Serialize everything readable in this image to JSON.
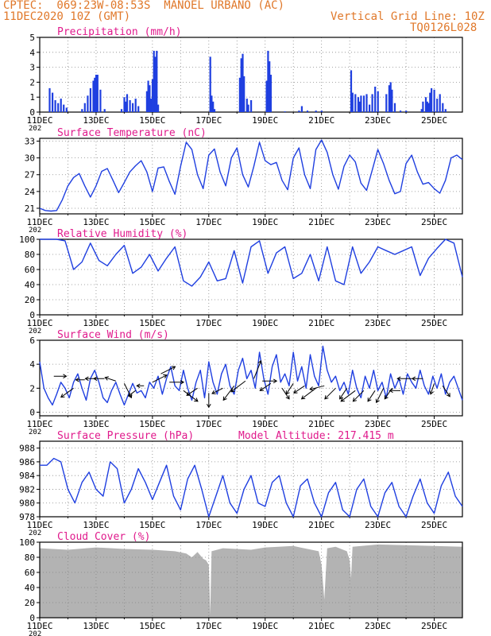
{
  "header": {
    "line1_left": "CPTEC:  069:23W-08:53S  MANOEL URBANO (AC)",
    "line2_left": "11DEC2020 10Z (GMT)",
    "line2_right": "Vertical Grid Line: 10Z",
    "line3_right": "TQ0126L028",
    "color": "#e0782a"
  },
  "colors": {
    "series": "#1f3fe0",
    "title": "#e01a8c",
    "cloud": "#b3b3b3",
    "wind_arrow": "#000000"
  },
  "x_axis": {
    "start": "11DEC 10Z",
    "span_days": 15,
    "tick_labels": [
      "11DEC",
      "13DEC",
      "15DEC",
      "17DEC",
      "19DEC",
      "21DEC",
      "23DEC",
      "25DEC"
    ],
    "tick_days": [
      0,
      2,
      4,
      6,
      8,
      10,
      12,
      14
    ],
    "grid_days": [
      1,
      3,
      5,
      7,
      9,
      11,
      13
    ],
    "cut_label": "202"
  },
  "chart_data": [
    {
      "type": "bar",
      "title": "Precipitation (mm/h)",
      "ylim": [
        0,
        5
      ],
      "yticks": [
        0,
        1,
        2,
        3,
        4,
        5
      ],
      "bars": [
        [
          0.35,
          1.6
        ],
        [
          0.45,
          1.3
        ],
        [
          0.55,
          0.8
        ],
        [
          0.65,
          0.6
        ],
        [
          0.75,
          0.9
        ],
        [
          0.85,
          0.5
        ],
        [
          0.95,
          0.3
        ],
        [
          1.5,
          0.2
        ],
        [
          1.6,
          0.6
        ],
        [
          1.7,
          1.1
        ],
        [
          1.8,
          1.6
        ],
        [
          1.9,
          2.1
        ],
        [
          1.95,
          2.3
        ],
        [
          2.0,
          2.5
        ],
        [
          2.05,
          2.5
        ],
        [
          2.15,
          1.5
        ],
        [
          2.3,
          0.2
        ],
        [
          2.9,
          0.2
        ],
        [
          3.0,
          1.0
        ],
        [
          3.05,
          0.7
        ],
        [
          3.1,
          1.2
        ],
        [
          3.2,
          0.8
        ],
        [
          3.3,
          0.6
        ],
        [
          3.4,
          0.9
        ],
        [
          3.5,
          0.4
        ],
        [
          3.8,
          1.4
        ],
        [
          3.85,
          2.1
        ],
        [
          3.9,
          1.8
        ],
        [
          3.95,
          0.9
        ],
        [
          4.0,
          2.2
        ],
        [
          4.05,
          4.1
        ],
        [
          4.1,
          3.7
        ],
        [
          4.15,
          4.1
        ],
        [
          4.2,
          0.5
        ],
        [
          6.05,
          3.7
        ],
        [
          6.1,
          1.1
        ],
        [
          6.15,
          0.7
        ],
        [
          6.2,
          0.2
        ],
        [
          7.1,
          2.3
        ],
        [
          7.15,
          3.6
        ],
        [
          7.2,
          3.9
        ],
        [
          7.25,
          2.4
        ],
        [
          7.35,
          0.9
        ],
        [
          7.4,
          0.5
        ],
        [
          7.5,
          0.8
        ],
        [
          8.05,
          2.1
        ],
        [
          8.1,
          4.1
        ],
        [
          8.15,
          3.4
        ],
        [
          8.2,
          2.5
        ],
        [
          8.7,
          0.05
        ],
        [
          9.2,
          0.1
        ],
        [
          9.3,
          0.4
        ],
        [
          9.5,
          0.1
        ],
        [
          9.8,
          0.1
        ],
        [
          10.0,
          0.1
        ],
        [
          11.05,
          2.8
        ],
        [
          11.1,
          1.3
        ],
        [
          11.2,
          1.2
        ],
        [
          11.3,
          1.0
        ],
        [
          11.35,
          0.7
        ],
        [
          11.4,
          1.1
        ],
        [
          11.5,
          1.1
        ],
        [
          11.6,
          1.2
        ],
        [
          11.7,
          0.5
        ],
        [
          11.8,
          1.2
        ],
        [
          11.9,
          1.7
        ],
        [
          12.0,
          1.4
        ],
        [
          12.3,
          1.2
        ],
        [
          12.4,
          1.8
        ],
        [
          12.45,
          2.0
        ],
        [
          12.5,
          1.5
        ],
        [
          12.6,
          0.6
        ],
        [
          12.8,
          0.1
        ],
        [
          13.0,
          0.1
        ],
        [
          13.55,
          0.2
        ],
        [
          13.6,
          0.7
        ],
        [
          13.7,
          1.0
        ],
        [
          13.75,
          0.7
        ],
        [
          13.8,
          0.6
        ],
        [
          13.85,
          1.3
        ],
        [
          13.9,
          1.6
        ],
        [
          14.0,
          1.5
        ],
        [
          14.1,
          0.9
        ],
        [
          14.2,
          1.2
        ],
        [
          14.3,
          0.6
        ],
        [
          14.4,
          0.2
        ]
      ]
    },
    {
      "type": "line",
      "title": "Surface Temperature (nC)",
      "ylim": [
        20,
        33.5
      ],
      "yticks": [
        21,
        24,
        27,
        30,
        33
      ],
      "x": [
        0,
        0.2,
        0.4,
        0.6,
        0.8,
        1.0,
        1.2,
        1.4,
        1.6,
        1.8,
        2.0,
        2.2,
        2.4,
        2.6,
        2.8,
        3.0,
        3.2,
        3.4,
        3.6,
        3.8,
        4.0,
        4.2,
        4.4,
        4.6,
        4.8,
        5.0,
        5.2,
        5.4,
        5.6,
        5.8,
        6.0,
        6.2,
        6.4,
        6.6,
        6.8,
        7.0,
        7.2,
        7.4,
        7.6,
        7.8,
        8.0,
        8.2,
        8.4,
        8.6,
        8.8,
        9.0,
        9.2,
        9.4,
        9.6,
        9.8,
        10.0,
        10.2,
        10.4,
        10.6,
        10.8,
        11.0,
        11.2,
        11.4,
        11.6,
        11.8,
        12.0,
        12.2,
        12.4,
        12.6,
        12.8,
        13.0,
        13.2,
        13.4,
        13.6,
        13.8,
        14.0,
        14.2,
        14.4,
        14.6,
        14.8,
        15.0
      ],
      "y": [
        21.0,
        20.6,
        20.5,
        20.6,
        22.5,
        25.0,
        26.5,
        27.2,
        25.0,
        23.0,
        25.0,
        27.6,
        28.1,
        26.0,
        23.8,
        25.6,
        27.5,
        28.6,
        29.5,
        27.5,
        24.0,
        28.2,
        28.4,
        25.8,
        23.5,
        28.5,
        32.8,
        31.5,
        27.0,
        24.5,
        30.5,
        31.6,
        27.5,
        25.0,
        30.0,
        31.8,
        27.0,
        24.8,
        28.5,
        32.8,
        29.5,
        28.8,
        29.2,
        26.0,
        24.3,
        30.0,
        31.8,
        27.0,
        24.5,
        31.5,
        33.2,
        31.0,
        27.0,
        24.4,
        28.5,
        30.5,
        29.3,
        25.5,
        24.2,
        27.8,
        31.5,
        29.0,
        26.0,
        23.6,
        24.0,
        29.0,
        30.5,
        27.5,
        25.3,
        25.6,
        24.5,
        23.7,
        26.0,
        30.0,
        30.5,
        29.7
      ]
    },
    {
      "type": "line",
      "title": "Relative Humidity (%)",
      "ylim": [
        0,
        100
      ],
      "yticks": [
        0,
        20,
        40,
        60,
        80,
        100
      ],
      "x": [
        0,
        0.3,
        0.6,
        0.9,
        1.2,
        1.5,
        1.8,
        2.1,
        2.4,
        2.7,
        3.0,
        3.3,
        3.6,
        3.9,
        4.2,
        4.5,
        4.8,
        5.1,
        5.4,
        5.7,
        6.0,
        6.3,
        6.6,
        6.9,
        7.2,
        7.5,
        7.8,
        8.1,
        8.4,
        8.7,
        9.0,
        9.3,
        9.6,
        9.9,
        10.2,
        10.5,
        10.8,
        11.1,
        11.4,
        11.7,
        12.0,
        12.3,
        12.6,
        12.9,
        13.2,
        13.5,
        13.8,
        14.1,
        14.4,
        14.7,
        15.0
      ],
      "y": [
        100,
        100,
        100,
        98,
        60,
        70,
        95,
        72,
        65,
        80,
        92,
        55,
        63,
        80,
        58,
        75,
        90,
        45,
        38,
        50,
        70,
        45,
        48,
        85,
        42,
        90,
        98,
        55,
        82,
        90,
        48,
        55,
        80,
        45,
        90,
        45,
        40,
        90,
        55,
        70,
        90,
        85,
        80,
        85,
        90,
        52,
        75,
        88,
        100,
        95,
        50
      ]
    },
    {
      "type": "line",
      "title": "Surface Wind (m/s)",
      "ylim": [
        -0.3,
        6
      ],
      "yticks": [
        0,
        2,
        4,
        6
      ],
      "x": [
        0,
        0.15,
        0.3,
        0.45,
        0.6,
        0.75,
        0.9,
        1.05,
        1.2,
        1.35,
        1.5,
        1.65,
        1.8,
        1.95,
        2.1,
        2.25,
        2.4,
        2.55,
        2.7,
        2.85,
        3.0,
        3.15,
        3.3,
        3.45,
        3.6,
        3.75,
        3.9,
        4.05,
        4.2,
        4.35,
        4.5,
        4.65,
        4.8,
        4.95,
        5.1,
        5.25,
        5.4,
        5.55,
        5.7,
        5.85,
        6.0,
        6.15,
        6.3,
        6.45,
        6.6,
        6.75,
        6.9,
        7.05,
        7.2,
        7.35,
        7.5,
        7.65,
        7.8,
        7.95,
        8.1,
        8.25,
        8.4,
        8.55,
        8.7,
        8.85,
        9.0,
        9.15,
        9.3,
        9.45,
        9.6,
        9.75,
        9.9,
        10.05,
        10.2,
        10.35,
        10.5,
        10.65,
        10.8,
        10.95,
        11.1,
        11.25,
        11.4,
        11.55,
        11.7,
        11.85,
        12.0,
        12.15,
        12.3,
        12.45,
        12.6,
        12.75,
        12.9,
        13.05,
        13.2,
        13.35,
        13.5,
        13.65,
        13.8,
        13.95,
        14.1,
        14.25,
        14.4,
        14.55,
        14.7,
        14.85,
        15.0
      ],
      "y": [
        4.2,
        2.0,
        1.2,
        0.6,
        1.5,
        2.5,
        2.0,
        1.2,
        2.5,
        3.2,
        2.0,
        1.0,
        2.8,
        3.5,
        2.5,
        1.2,
        0.8,
        1.8,
        2.5,
        1.5,
        0.6,
        1.5,
        2.4,
        1.6,
        1.8,
        1.2,
        2.5,
        2.0,
        3.0,
        1.5,
        2.8,
        3.8,
        2.2,
        1.8,
        3.5,
        2.0,
        1.0,
        2.5,
        3.5,
        1.2,
        4.2,
        2.5,
        1.5,
        3.2,
        4.0,
        2.2,
        1.5,
        3.5,
        4.5,
        2.8,
        3.5,
        2.0,
        5.0,
        2.8,
        1.5,
        3.8,
        4.8,
        2.5,
        3.2,
        2.2,
        5.0,
        2.6,
        3.8,
        2.0,
        4.8,
        3.0,
        2.2,
        5.5,
        3.5,
        2.5,
        3.0,
        1.8,
        2.5,
        1.5,
        3.5,
        2.0,
        1.2,
        3.0,
        2.0,
        3.5,
        1.8,
        2.5,
        1.2,
        3.2,
        2.0,
        2.8,
        1.5,
        3.2,
        2.5,
        2.0,
        3.5,
        2.2,
        1.5,
        3.0,
        2.0,
        3.2,
        1.5,
        2.5,
        3.0,
        2.0,
        1.0
      ],
      "arrows": [
        [
          0.5,
          3.0,
          3.5,
          0
        ],
        [
          1.2,
          2.0,
          -3.5,
          -2.5
        ],
        [
          1.6,
          2.7,
          -2.5,
          0
        ],
        [
          2.0,
          2.8,
          -3,
          0
        ],
        [
          2.3,
          2.8,
          -3,
          0
        ],
        [
          2.7,
          2.6,
          -3,
          1
        ],
        [
          3.0,
          2.4,
          2,
          -4
        ],
        [
          3.4,
          1.8,
          -2,
          -1.5
        ],
        [
          3.7,
          2.2,
          -2,
          0
        ],
        [
          4.0,
          2.5,
          4,
          2
        ],
        [
          4.3,
          3.2,
          4,
          2
        ],
        [
          4.6,
          2.5,
          4,
          0
        ],
        [
          5.1,
          1.8,
          4,
          -3
        ],
        [
          5.6,
          2.0,
          -3,
          -2
        ],
        [
          6.0,
          1.6,
          0,
          -4
        ],
        [
          6.5,
          2.0,
          -3,
          -1.5
        ],
        [
          6.9,
          2.2,
          -3,
          -4
        ],
        [
          7.3,
          2.6,
          -4,
          -3
        ],
        [
          7.6,
          2.8,
          2,
          5
        ],
        [
          7.9,
          2.6,
          4,
          0
        ],
        [
          8.2,
          2.4,
          -3,
          -2
        ],
        [
          8.6,
          2.0,
          2,
          -3
        ],
        [
          9.0,
          2.4,
          -2,
          -3
        ],
        [
          9.4,
          2.2,
          -3,
          -2
        ],
        [
          9.8,
          2.0,
          -4,
          -3
        ],
        [
          10.1,
          2.2,
          -4,
          -1
        ],
        [
          10.5,
          2.0,
          -3,
          -3
        ],
        [
          10.9,
          2.0,
          -2,
          -3
        ],
        [
          11.2,
          1.8,
          -4,
          -3
        ],
        [
          11.5,
          1.8,
          -3,
          -3
        ],
        [
          11.9,
          1.8,
          -2,
          -3
        ],
        [
          12.2,
          2.0,
          -2,
          -4
        ],
        [
          12.5,
          2.0,
          -2,
          -3
        ],
        [
          12.8,
          1.8,
          -3,
          0
        ],
        [
          13.2,
          2.8,
          -4,
          0
        ],
        [
          13.6,
          2.8,
          -3,
          0
        ],
        [
          14.0,
          2.4,
          -1,
          -3
        ],
        [
          14.3,
          2.2,
          2,
          -3
        ]
      ]
    },
    {
      "type": "line",
      "title": "Surface Pressure (hPa)",
      "annotation": "Model Altitude: 217.415 m",
      "ylim": [
        978,
        989
      ],
      "yticks": [
        978,
        980,
        982,
        984,
        986,
        988
      ],
      "x": [
        0,
        0.25,
        0.5,
        0.75,
        1.0,
        1.25,
        1.5,
        1.75,
        2.0,
        2.25,
        2.5,
        2.75,
        3.0,
        3.25,
        3.5,
        3.75,
        4.0,
        4.25,
        4.5,
        4.75,
        5.0,
        5.25,
        5.5,
        5.75,
        6.0,
        6.25,
        6.5,
        6.75,
        7.0,
        7.25,
        7.5,
        7.75,
        8.0,
        8.25,
        8.5,
        8.75,
        9.0,
        9.25,
        9.5,
        9.75,
        10.0,
        10.25,
        10.5,
        10.75,
        11.0,
        11.25,
        11.5,
        11.75,
        12.0,
        12.25,
        12.5,
        12.75,
        13.0,
        13.25,
        13.5,
        13.75,
        14.0,
        14.25,
        14.5,
        14.75,
        15.0
      ],
      "y": [
        985.5,
        985.5,
        986.5,
        986.0,
        982.0,
        980.0,
        983.0,
        984.5,
        982.0,
        981.0,
        986.0,
        985.0,
        980.0,
        982.0,
        985.0,
        983.0,
        980.5,
        983.0,
        985.5,
        981.0,
        979.0,
        983.5,
        985.5,
        982.0,
        978.0,
        981.0,
        984.0,
        980.0,
        978.5,
        982.0,
        984.0,
        980.0,
        979.5,
        983.0,
        984.0,
        980.0,
        978.0,
        982.5,
        983.5,
        980.0,
        978.0,
        981.5,
        983.0,
        979.0,
        978.0,
        982.0,
        983.5,
        979.5,
        978.0,
        981.5,
        983.0,
        979.5,
        978.0,
        981.0,
        983.5,
        980.0,
        978.5,
        982.5,
        984.5,
        981.0,
        979.5
      ]
    },
    {
      "type": "bar",
      "title": "Cloud Cover (%)",
      "ylim": [
        0,
        100
      ],
      "yticks": [
        0,
        20,
        40,
        60,
        80,
        100
      ],
      "profile": [
        [
          0.0,
          92
        ],
        [
          1.0,
          90
        ],
        [
          2.0,
          93
        ],
        [
          3.0,
          91
        ],
        [
          4.0,
          90
        ],
        [
          4.8,
          88
        ],
        [
          5.2,
          85
        ],
        [
          5.4,
          80
        ],
        [
          5.6,
          87
        ],
        [
          5.8,
          78
        ],
        [
          5.9,
          76
        ],
        [
          6.0,
          70
        ],
        [
          6.05,
          4
        ],
        [
          6.1,
          88
        ],
        [
          6.5,
          92
        ],
        [
          7.5,
          90
        ],
        [
          8.0,
          93
        ],
        [
          9.0,
          95
        ],
        [
          9.9,
          88
        ],
        [
          10.0,
          70
        ],
        [
          10.1,
          24
        ],
        [
          10.2,
          92
        ],
        [
          10.5,
          94
        ],
        [
          10.9,
          88
        ],
        [
          11.0,
          76
        ],
        [
          11.05,
          52
        ],
        [
          11.1,
          94
        ],
        [
          12.0,
          97
        ],
        [
          13.0,
          96
        ],
        [
          14.0,
          95
        ],
        [
          15.0,
          94
        ]
      ]
    }
  ]
}
